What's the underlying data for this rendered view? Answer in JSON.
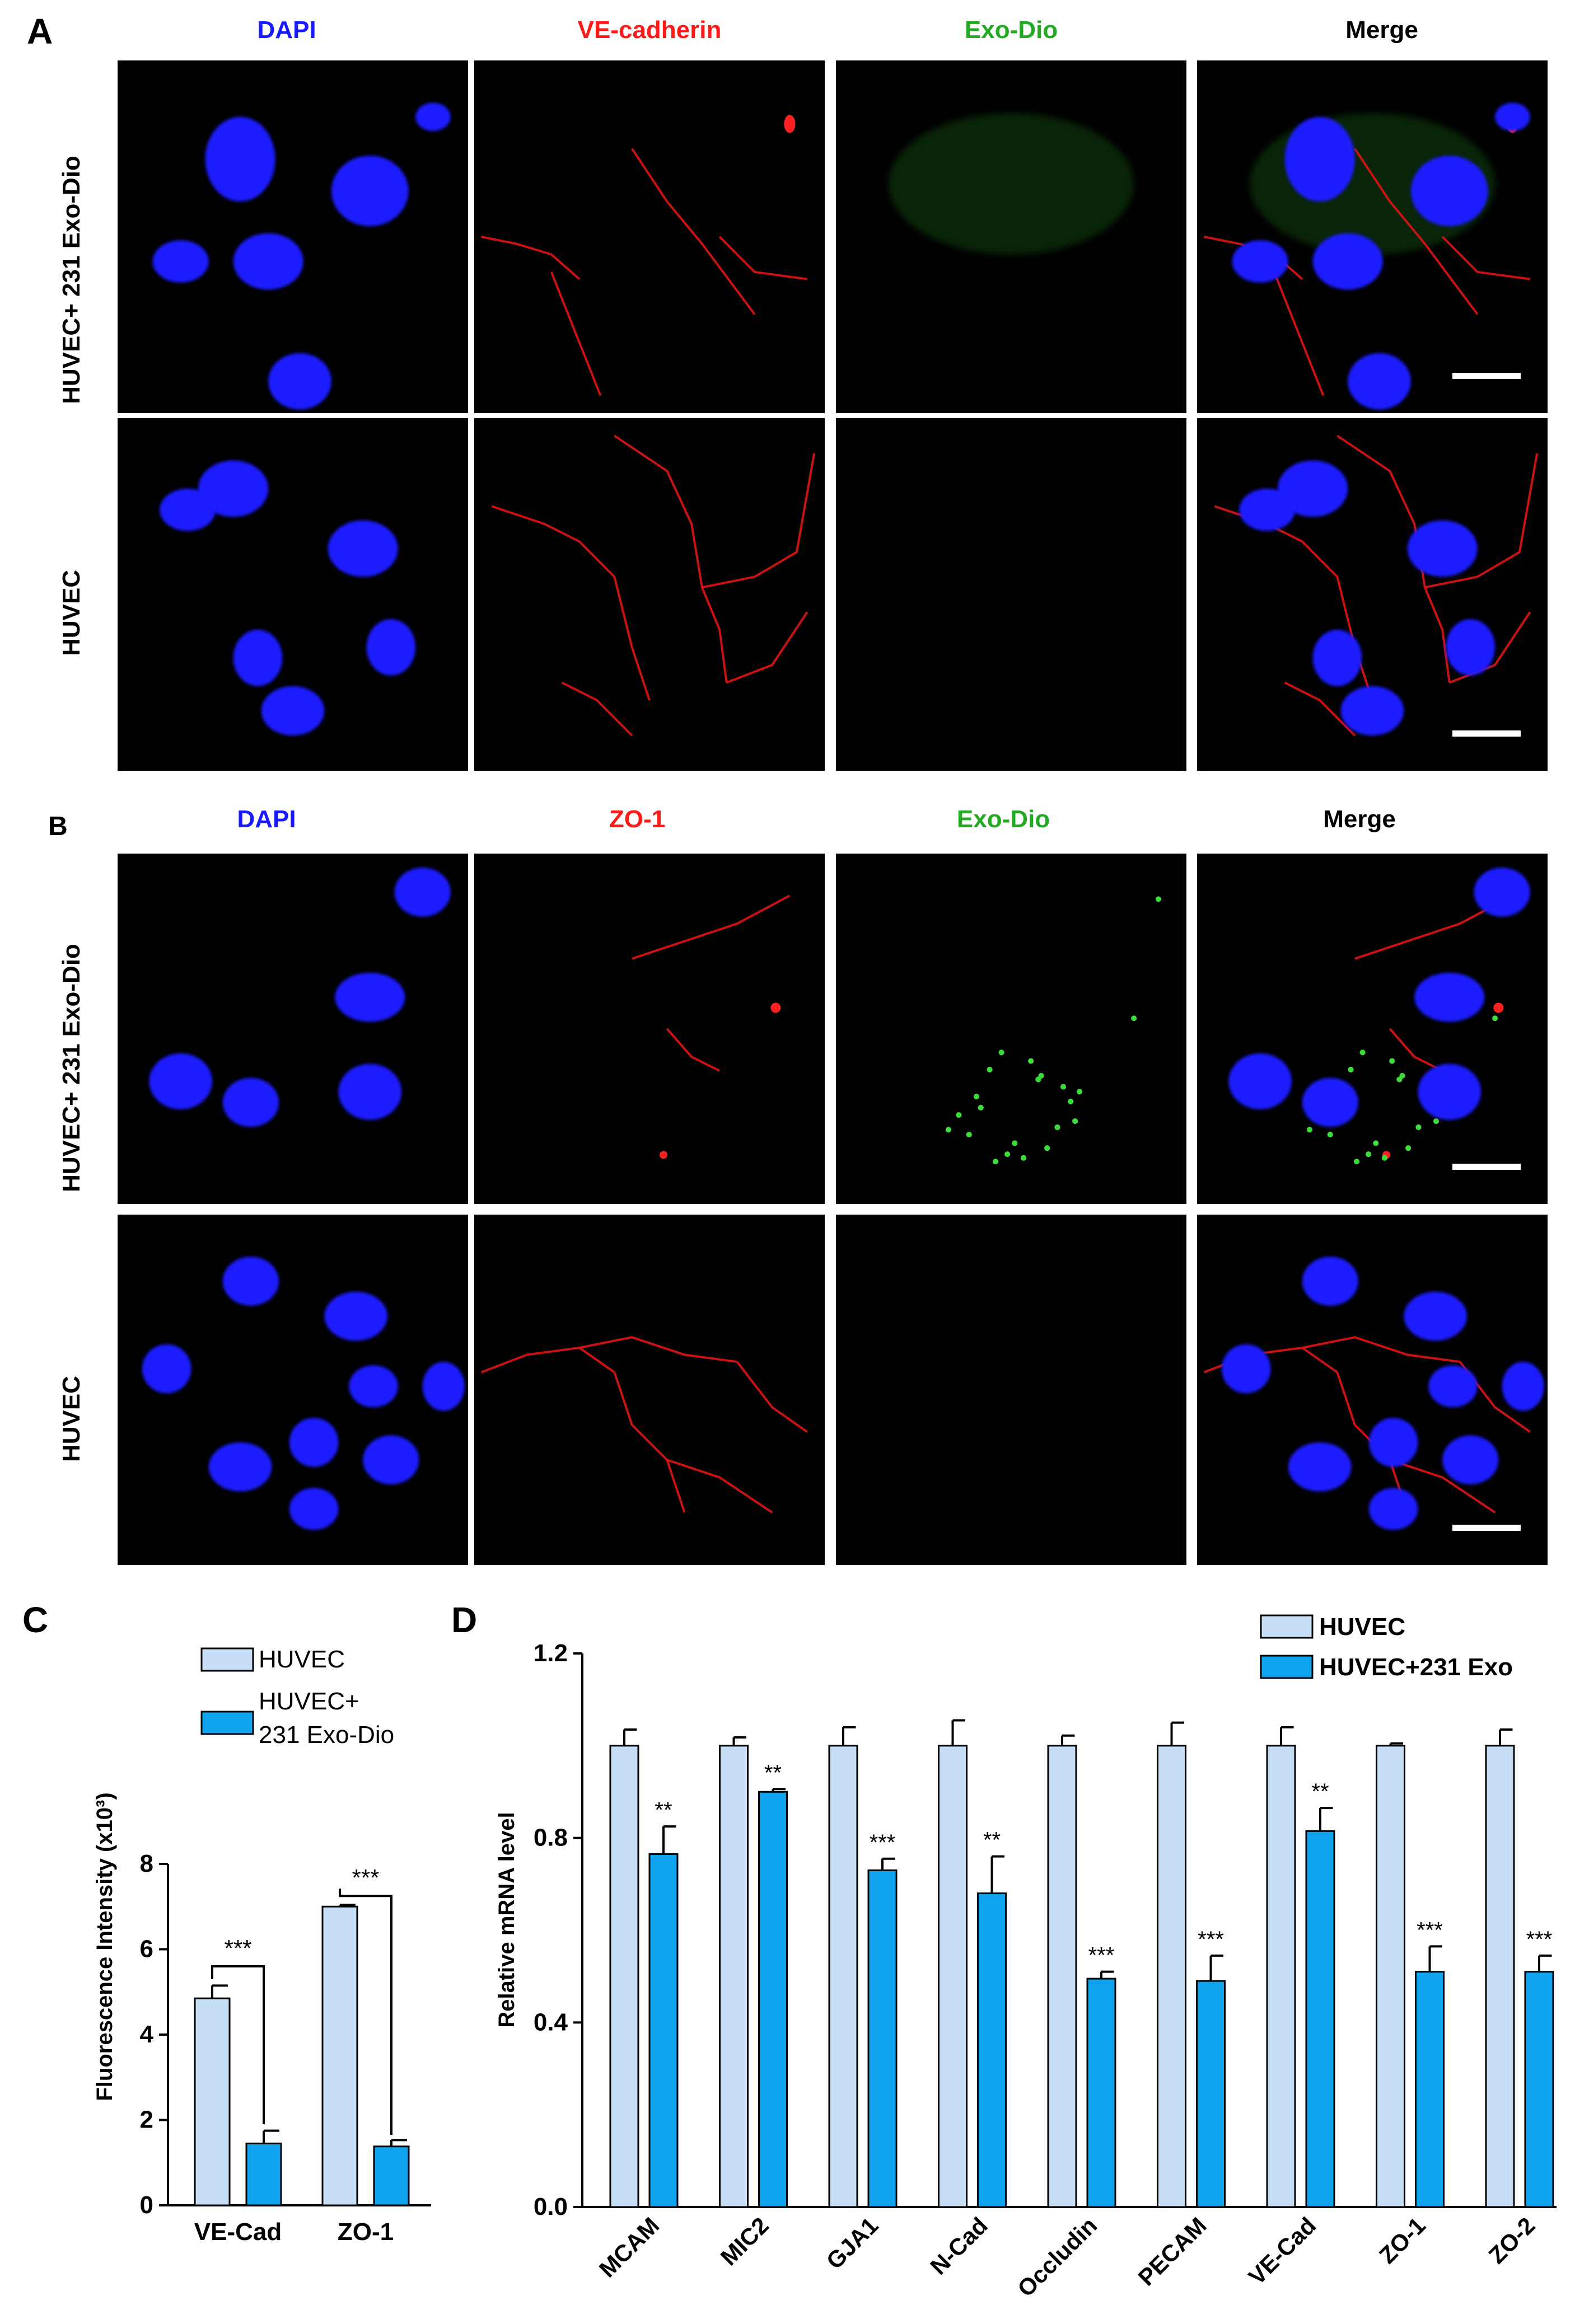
{
  "panels": {
    "A": {
      "letter": "A",
      "columns": [
        "DAPI",
        "VE-cadherin",
        "Exo-Dio",
        "Merge"
      ],
      "rows": [
        "HUVEC+ 231  Exo-Dio",
        "HUVEC"
      ]
    },
    "B": {
      "letter": "B",
      "columns": [
        "DAPI",
        "ZO-1",
        "Exo-Dio",
        "Merge"
      ],
      "rows": [
        "HUVEC+ 231  Exo-Dio",
        "HUVEC"
      ]
    },
    "C": {
      "letter": "C"
    },
    "D": {
      "letter": "D"
    }
  },
  "colors": {
    "dapi": "#1a1aff",
    "red": "#ff1a1a",
    "green": "#22aa22",
    "merge": "#000000",
    "huvec": "#c6dff7",
    "exo": "#0fa3ee"
  },
  "chart_data": [
    {
      "type": "bar",
      "panel": "C",
      "categories": [
        "VE-Cad",
        "ZO-1"
      ],
      "series": [
        {
          "name": "HUVEC",
          "values": [
            4.85,
            7.0
          ],
          "errors": [
            0.3,
            0.04
          ]
        },
        {
          "name": "HUVEC+\n231 Exo-Dio",
          "values": [
            1.45,
            1.38
          ],
          "errors": [
            0.3,
            0.15
          ]
        }
      ],
      "ylabel": "Fluorescence Intensity (x10³)",
      "ylim": [
        0,
        8
      ],
      "yticks": [
        0,
        2,
        4,
        6,
        8
      ],
      "significance": [
        "***",
        "***"
      ],
      "legend": "top"
    },
    {
      "type": "bar",
      "panel": "D",
      "categories": [
        "MCAM",
        "MIC2",
        "GJA1",
        "N-Cad",
        "Occludin",
        "PECAM",
        "VE-Cad",
        "ZO-1",
        "ZO-2"
      ],
      "series": [
        {
          "name": "HUVEC",
          "values": [
            1.0,
            1.0,
            1.0,
            1.0,
            1.0,
            1.0,
            1.0,
            1.0,
            1.0
          ],
          "errors": [
            0.035,
            0.018,
            0.04,
            0.055,
            0.022,
            0.05,
            0.04,
            0.005,
            0.035
          ]
        },
        {
          "name": "HUVEC+231 Exo",
          "values": [
            0.765,
            0.9,
            0.73,
            0.68,
            0.495,
            0.49,
            0.815,
            0.51,
            0.51
          ],
          "errors": [
            0.06,
            0.006,
            0.025,
            0.08,
            0.015,
            0.055,
            0.05,
            0.055,
            0.035
          ]
        }
      ],
      "ylabel": "Relative mRNA level",
      "ylim": [
        0,
        1.2
      ],
      "yticks": [
        "0.0",
        "0.4",
        "0.8",
        "1.2"
      ],
      "significance": [
        "**",
        "**",
        "***",
        "**",
        "***",
        "***",
        "**",
        "***",
        "***"
      ],
      "legend": "top-right"
    }
  ]
}
